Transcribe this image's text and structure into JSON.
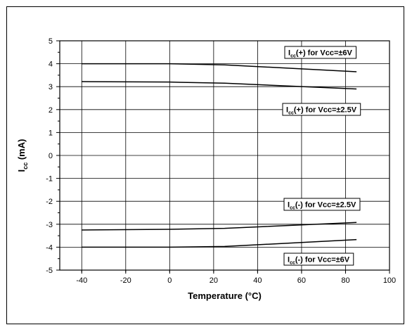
{
  "chart_data": {
    "type": "line",
    "xlabel": "Temperature (°C)",
    "ylabel_main": "I",
    "ylabel_sub": "cc",
    "ylabel_unit": " (mA)",
    "xlim": [
      -50,
      100
    ],
    "ylim": [
      -5,
      5
    ],
    "x_ticks": [
      -40,
      -20,
      0,
      20,
      40,
      60,
      80,
      100
    ],
    "y_ticks": [
      -5,
      -4,
      -3,
      -2,
      -1,
      0,
      1,
      2,
      3,
      4,
      5
    ],
    "grid": true,
    "series": [
      {
        "name": "I_cc(+) for Vcc=±6V",
        "x": [
          -40,
          0,
          25,
          85
        ],
        "values": [
          4.0,
          4.0,
          3.95,
          3.65
        ],
        "label": {
          "pre": "I",
          "sub": "cc",
          "post": "(+) for Vcc=±6V"
        }
      },
      {
        "name": "I_cc(+) for Vcc=±2.5V",
        "x": [
          -40,
          0,
          25,
          85
        ],
        "values": [
          3.22,
          3.2,
          3.15,
          2.9
        ],
        "label": {
          "pre": "I",
          "sub": "cc",
          "post": "(+) for Vcc=±2.5V"
        }
      },
      {
        "name": "I_cc(-) for Vcc=±2.5V",
        "x": [
          -40,
          0,
          25,
          85
        ],
        "values": [
          -3.25,
          -3.22,
          -3.18,
          -2.92
        ],
        "label": {
          "pre": "I",
          "sub": "cc",
          "post": "(-) for Vcc=±2.5V"
        }
      },
      {
        "name": "I_cc(-) for Vcc=±6V",
        "x": [
          -40,
          0,
          25,
          85
        ],
        "values": [
          -4.0,
          -4.0,
          -3.97,
          -3.67
        ],
        "label": {
          "pre": "I",
          "sub": "cc",
          "post": "(-) for Vcc=±6V"
        }
      }
    ]
  }
}
